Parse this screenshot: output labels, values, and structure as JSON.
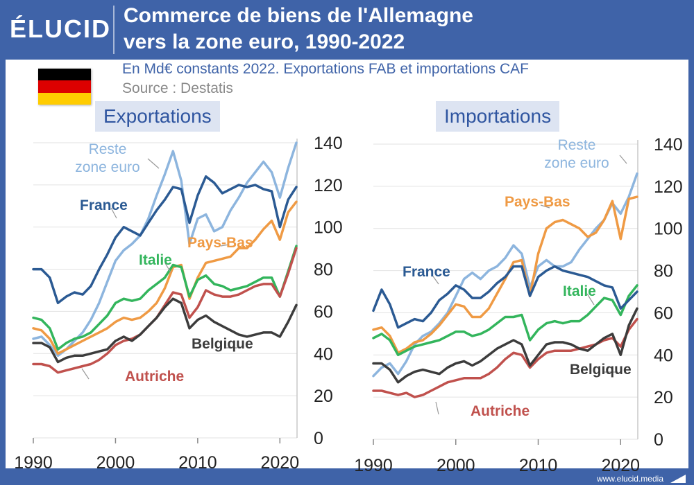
{
  "header": {
    "logo": "ÉLUCID",
    "title_line1": "Commerce de biens de l'Allemagne",
    "title_line2": "vers la zone euro, 1990-2022",
    "subtitle": "En Md€ constants 2022. Exportations FAB et importations CAF",
    "source": "Source : Destatis",
    "brand_color": "#3f63a8"
  },
  "flag": {
    "colors": [
      "#000000",
      "#dd0000",
      "#ffcc00"
    ],
    "icon": "germany-flag-icon"
  },
  "footer": {
    "url": "www.elucid.media"
  },
  "colors": {
    "France": "#2b5a93",
    "Reste zone euro": "#8db5de",
    "Pays-Bas": "#ef9a44",
    "Italie": "#33b55c",
    "Belgique": "#3c3c3c",
    "Autriche": "#c0514d"
  },
  "chart_data": [
    {
      "type": "line",
      "title": "Exportations",
      "xlim": [
        1990,
        2022
      ],
      "ylim": [
        0,
        140
      ],
      "xticks": [
        1990,
        2000,
        2010,
        2020
      ],
      "yticks": [
        0,
        20,
        40,
        60,
        80,
        100,
        120,
        140
      ],
      "grid": true,
      "x": [
        1990,
        1991,
        1992,
        1993,
        1994,
        1995,
        1996,
        1997,
        1998,
        1999,
        2000,
        2001,
        2002,
        2003,
        2004,
        2005,
        2006,
        2007,
        2008,
        2009,
        2010,
        2011,
        2012,
        2013,
        2014,
        2015,
        2016,
        2017,
        2018,
        2019,
        2020,
        2021,
        2022
      ],
      "series": [
        {
          "name": "France",
          "values": [
            80,
            80,
            76,
            64,
            67,
            69,
            68,
            72,
            80,
            87,
            95,
            100,
            98,
            96,
            102,
            108,
            113,
            119,
            118,
            102,
            115,
            124,
            121,
            116,
            118,
            120,
            119,
            120,
            118,
            117,
            100,
            113,
            119
          ]
        },
        {
          "name": "Reste zone euro",
          "values": [
            47,
            48,
            44,
            39,
            42,
            46,
            50,
            56,
            64,
            74,
            84,
            89,
            92,
            96,
            104,
            115,
            125,
            136,
            122,
            92,
            104,
            106,
            98,
            100,
            108,
            114,
            121,
            126,
            131,
            126,
            114,
            128,
            140
          ]
        },
        {
          "name": "Pays-Bas",
          "values": [
            52,
            51,
            47,
            40,
            42,
            44,
            46,
            48,
            50,
            52,
            55,
            57,
            56,
            57,
            60,
            64,
            71,
            81,
            82,
            66,
            76,
            83,
            84,
            85,
            86,
            90,
            90,
            94,
            99,
            103,
            94,
            107,
            112
          ]
        },
        {
          "name": "Italie",
          "values": [
            57,
            56,
            52,
            42,
            45,
            47,
            48,
            50,
            54,
            58,
            64,
            66,
            65,
            66,
            70,
            73,
            76,
            82,
            81,
            67,
            75,
            77,
            73,
            72,
            70,
            71,
            72,
            74,
            76,
            76,
            67,
            79,
            91
          ]
        },
        {
          "name": "Belgique",
          "values": [
            45,
            45,
            43,
            36,
            38,
            39,
            39,
            40,
            41,
            42,
            46,
            48,
            46,
            49,
            53,
            57,
            62,
            66,
            64,
            52,
            56,
            58,
            55,
            53,
            51,
            49,
            48,
            49,
            50,
            50,
            48,
            55,
            63
          ]
        },
        {
          "name": "Autriche",
          "values": [
            35,
            35,
            34,
            31,
            32,
            33,
            34,
            35,
            37,
            40,
            44,
            46,
            47,
            49,
            53,
            57,
            63,
            69,
            68,
            57,
            62,
            70,
            68,
            67,
            67,
            68,
            70,
            72,
            73,
            73,
            67,
            78,
            90
          ]
        }
      ],
      "labels": [
        "France",
        "Reste zone euro",
        "Pays-Bas",
        "Italie",
        "Belgique",
        "Autriche"
      ]
    },
    {
      "type": "line",
      "title": "Importations",
      "xlim": [
        1990,
        2022
      ],
      "ylim": [
        0,
        140
      ],
      "xticks": [
        1990,
        2000,
        2010,
        2020
      ],
      "yticks": [
        0,
        20,
        40,
        60,
        80,
        100,
        120,
        140
      ],
      "grid": true,
      "x": [
        1990,
        1991,
        1992,
        1993,
        1994,
        1995,
        1996,
        1997,
        1998,
        1999,
        2000,
        2001,
        2002,
        2003,
        2004,
        2005,
        2006,
        2007,
        2008,
        2009,
        2010,
        2011,
        2012,
        2013,
        2014,
        2015,
        2016,
        2017,
        2018,
        2019,
        2020,
        2021,
        2022
      ],
      "series": [
        {
          "name": "France",
          "values": [
            61,
            71,
            64,
            53,
            55,
            57,
            56,
            60,
            66,
            69,
            73,
            71,
            67,
            67,
            70,
            74,
            77,
            82,
            82,
            68,
            77,
            80,
            82,
            80,
            79,
            78,
            77,
            75,
            73,
            72,
            62,
            66,
            70
          ]
        },
        {
          "name": "Reste zone euro",
          "values": [
            30,
            34,
            36,
            31,
            37,
            45,
            49,
            51,
            55,
            60,
            68,
            76,
            79,
            76,
            80,
            82,
            86,
            92,
            88,
            72,
            82,
            85,
            82,
            82,
            84,
            90,
            95,
            100,
            104,
            112,
            107,
            115,
            126
          ]
        },
        {
          "name": "Pays-Bas",
          "values": [
            52,
            53,
            49,
            41,
            43,
            46,
            47,
            50,
            54,
            59,
            64,
            63,
            58,
            58,
            62,
            69,
            76,
            84,
            85,
            68,
            88,
            100,
            103,
            104,
            102,
            100,
            96,
            98,
            104,
            113,
            95,
            114,
            115
          ]
        },
        {
          "name": "Italie",
          "values": [
            48,
            50,
            47,
            40,
            42,
            44,
            45,
            46,
            47,
            49,
            51,
            51,
            49,
            50,
            52,
            55,
            58,
            58,
            59,
            47,
            52,
            55,
            56,
            55,
            56,
            56,
            59,
            63,
            67,
            66,
            59,
            68,
            73
          ]
        },
        {
          "name": "Belgique",
          "values": [
            36,
            36,
            33,
            27,
            30,
            32,
            33,
            32,
            31,
            34,
            36,
            37,
            35,
            37,
            40,
            43,
            45,
            47,
            45,
            35,
            40,
            45,
            46,
            46,
            45,
            43,
            42,
            45,
            48,
            50,
            40,
            54,
            62
          ]
        },
        {
          "name": "Autriche",
          "values": [
            23,
            23,
            22,
            21,
            22,
            20,
            21,
            23,
            25,
            27,
            28,
            29,
            29,
            29,
            31,
            34,
            38,
            41,
            40,
            34,
            38,
            41,
            42,
            42,
            42,
            43,
            44,
            45,
            47,
            48,
            44,
            52,
            57
          ]
        }
      ],
      "labels": [
        "France",
        "Reste zone euro",
        "Pays-Bas",
        "Italie",
        "Belgique",
        "Autriche"
      ]
    }
  ]
}
